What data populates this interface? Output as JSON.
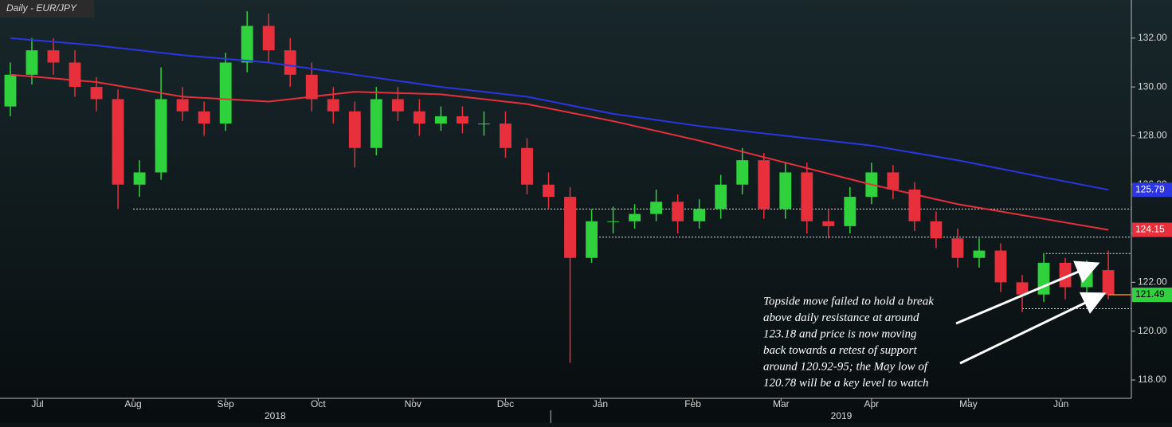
{
  "chart_data": {
    "type": "candlestick",
    "title": "Daily - EUR/JPY",
    "x": [
      0,
      1,
      2,
      3,
      4,
      5,
      6,
      7,
      8,
      9,
      10,
      11,
      12,
      13,
      14,
      15,
      16,
      17,
      18,
      19,
      20,
      21,
      22,
      23,
      24,
      25,
      26,
      27,
      28,
      29,
      30,
      31,
      32,
      33,
      34,
      35,
      36,
      37,
      38,
      39,
      40,
      41,
      42,
      43,
      44,
      45,
      46,
      47,
      48,
      49,
      50,
      51
    ],
    "open": [
      129.2,
      130.5,
      131.5,
      131,
      130,
      129.5,
      126,
      126.5,
      129.5,
      129,
      128.5,
      131,
      132.5,
      131.5,
      130.5,
      129.5,
      129,
      127.5,
      129.5,
      129,
      128.5,
      128.8,
      128.5,
      128.5,
      127.5,
      126,
      125.5,
      123,
      124.5,
      124.5,
      124.8,
      125.3,
      124.5,
      125,
      126,
      127,
      125,
      126.5,
      124.5,
      124.3,
      125.5,
      126.5,
      125.8,
      124.5,
      123.8,
      123,
      123.3,
      122,
      121.5,
      122.8,
      121.8,
      122.5
    ],
    "high": [
      131.0,
      132.0,
      132.0,
      131.5,
      130.4,
      129.9,
      127.0,
      130.8,
      130.0,
      129.4,
      131.4,
      133.1,
      133.0,
      132.0,
      131.0,
      130.0,
      129.4,
      130.0,
      130.0,
      129.5,
      129.2,
      129.2,
      129.0,
      129.0,
      127.9,
      126.5,
      125.9,
      125.0,
      125.1,
      125.2,
      125.8,
      125.6,
      125.4,
      126.4,
      127.5,
      127.3,
      126.9,
      126.9,
      125.0,
      125.9,
      126.9,
      126.8,
      126.1,
      124.9,
      124.2,
      123.8,
      123.6,
      122.3,
      123.2,
      123.0,
      122.9,
      123.3
    ],
    "low": [
      128.8,
      130.1,
      130.5,
      129.6,
      129.0,
      125.0,
      125.5,
      126.2,
      128.6,
      128.0,
      128.2,
      130.6,
      131.0,
      130.0,
      129.0,
      128.5,
      126.7,
      127.2,
      128.6,
      128.0,
      128.2,
      128.1,
      128.0,
      127.1,
      125.6,
      125.0,
      118.7,
      122.8,
      124.0,
      124.2,
      124.5,
      124.0,
      124.2,
      124.6,
      125.6,
      124.6,
      124.6,
      124.0,
      123.8,
      124.0,
      125.2,
      125.4,
      124.1,
      123.4,
      122.6,
      122.6,
      121.6,
      120.78,
      121.2,
      121.3,
      121.5,
      121.3
    ],
    "close": [
      130.5,
      131.5,
      131,
      130,
      129.5,
      126,
      126.5,
      129.5,
      129,
      128.5,
      131,
      132.5,
      131.5,
      130.5,
      129.5,
      129,
      127.5,
      129.5,
      129,
      128.5,
      128.8,
      128.5,
      128.5,
      127.5,
      126,
      125.5,
      123,
      124.5,
      124.5,
      124.8,
      125.3,
      124.5,
      125,
      126,
      127,
      125,
      126.5,
      124.5,
      124.3,
      125.5,
      126.5,
      125.8,
      124.5,
      123.8,
      123,
      123.3,
      122,
      121.5,
      122.8,
      121.8,
      122.5,
      121.49
    ],
    "up_color": "#2fd13c",
    "down_color": "#e8303c",
    "series": [
      {
        "color": "#2b35e0",
        "x": [
          0,
          4,
          8,
          12,
          16,
          20,
          24,
          28,
          32,
          36,
          40,
          44,
          48,
          51
        ],
        "values": [
          132.0,
          131.7,
          131.3,
          131.0,
          130.5,
          130.0,
          129.6,
          128.9,
          128.4,
          128.0,
          127.6,
          127.0,
          126.3,
          125.79
        ]
      },
      {
        "color": "#e8303c",
        "x": [
          0,
          4,
          8,
          12,
          16,
          20,
          24,
          28,
          32,
          36,
          40,
          44,
          48,
          51
        ],
        "values": [
          130.5,
          130.2,
          129.6,
          129.4,
          129.8,
          129.7,
          129.3,
          128.6,
          127.8,
          126.9,
          126.0,
          125.2,
          124.6,
          124.15
        ]
      }
    ],
    "last_color": "#2fd13c",
    "levels": [
      {
        "value": 125.0,
        "from": 5.7
      },
      {
        "value": 123.85,
        "from": 27.2
      },
      {
        "value": 123.18,
        "from": 48.1
      },
      {
        "value": 120.92,
        "from": 47.0
      }
    ],
    "xlim": [
      -0.48,
      52.07
    ],
    "ylim": [
      117.25,
      133.56
    ],
    "yticks": [
      {
        "value": 118,
        "label": "118.00"
      },
      {
        "value": 120,
        "label": "120.00"
      },
      {
        "value": 122,
        "label": "122.00"
      },
      {
        "value": 124,
        "label": "124.00"
      },
      {
        "value": 126,
        "label": "126.00"
      },
      {
        "value": 128,
        "label": "128.00"
      },
      {
        "value": 130,
        "label": "130.00"
      },
      {
        "value": 132,
        "label": "132.00"
      }
    ],
    "xticks": [
      {
        "value": 1.26,
        "label": "Jul"
      },
      {
        "value": 5.7,
        "label": "Aug"
      },
      {
        "value": 10,
        "label": "Sep"
      },
      {
        "value": 14.3,
        "label": "Oct"
      },
      {
        "value": 18.7,
        "label": "Nov"
      },
      {
        "value": 23,
        "label": "Dec"
      },
      {
        "value": 27.4,
        "label": "Jan"
      },
      {
        "value": 31.7,
        "label": "Feb"
      },
      {
        "value": 35.8,
        "label": "Mar"
      },
      {
        "value": 40,
        "label": "Apr"
      },
      {
        "value": 44.5,
        "label": "May"
      },
      {
        "value": 48.8,
        "label": "Jun"
      }
    ],
    "year_ticks": [
      {
        "value": 12.3,
        "label": "2018"
      },
      {
        "value": 38.6,
        "label": "2019"
      }
    ],
    "year_divider": 25.1,
    "annotation": [
      "Topside move failed to hold a break",
      "above daily resistance at around",
      "123.18 and price is now moving",
      "back towards a retest of support",
      "around 120.92-95; the May low of",
      "120.78 will be a key level to watch"
    ]
  }
}
